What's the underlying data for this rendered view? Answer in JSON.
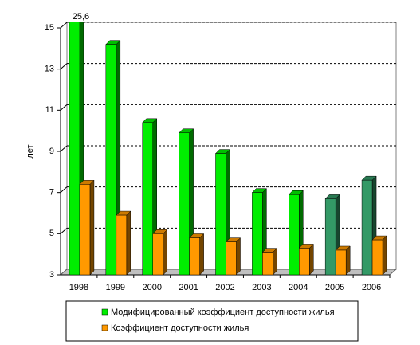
{
  "chart_data": {
    "type": "bar3d",
    "y_label": "лет",
    "categories": [
      "1998",
      "1999",
      "2000",
      "2001",
      "2002",
      "2003",
      "2004",
      "2005",
      "2006"
    ],
    "series": [
      {
        "name": "Модифицированный коэффициент доступности жилья",
        "color": "#00ee00",
        "colors": [
          "#00ee00",
          "#00ee00",
          "#00ee00",
          "#00ee00",
          "#00ee00",
          "#00ee00",
          "#00ee00",
          "#339966",
          "#339966"
        ],
        "values": [
          25.6,
          14.2,
          10.4,
          9.9,
          8.9,
          7.0,
          6.9,
          6.7,
          7.6
        ],
        "value_labels": [
          "25,6",
          null,
          null,
          null,
          null,
          null,
          null,
          null,
          null
        ]
      },
      {
        "name": "Коэффициент доступности жилья",
        "color": "#ff9900",
        "values": [
          7.4,
          5.9,
          5.0,
          4.8,
          4.6,
          4.1,
          4.3,
          4.2,
          4.7
        ]
      }
    ],
    "ylim": [
      3,
      15
    ],
    "yticks": [
      3,
      5,
      7,
      9,
      11,
      13,
      15
    ],
    "grid": true
  }
}
